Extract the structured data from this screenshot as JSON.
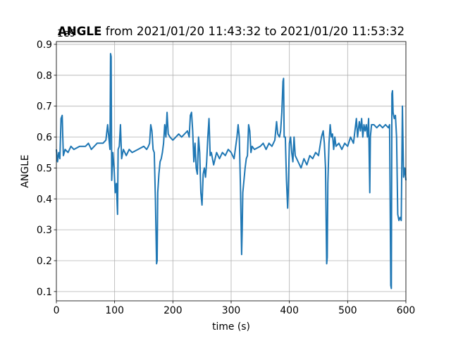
{
  "chart_data": {
    "type": "line",
    "title_bold": "ANGLE",
    "title": "from 2021/01/20 11:43:32 to 2021/01/20 11:53:32",
    "offset_text": "1e9",
    "xlabel": "time (s)",
    "ylabel": "ANGLE",
    "color": "#1f77b4",
    "grid": true,
    "xlim": [
      0,
      600
    ],
    "xticks": [
      0,
      100,
      200,
      300,
      400,
      500,
      600
    ],
    "ylim": [
      0.07,
      0.909
    ],
    "yticks": [
      0.1,
      0.2,
      0.3,
      0.4,
      0.5,
      0.6,
      0.7,
      0.8,
      0.9
    ],
    "x": [
      0,
      2,
      4,
      6,
      8,
      10,
      11,
      12,
      15,
      20,
      25,
      30,
      40,
      50,
      55,
      60,
      70,
      80,
      85,
      88,
      90,
      92,
      93,
      94,
      95,
      97,
      99,
      101,
      103,
      105,
      106,
      108,
      110,
      112,
      115,
      120,
      125,
      130,
      140,
      150,
      155,
      158,
      160,
      162,
      164,
      166,
      168,
      170,
      172,
      173,
      174,
      176,
      178,
      180,
      182,
      184,
      186,
      188,
      190,
      192,
      195,
      200,
      210,
      215,
      220,
      225,
      228,
      230,
      232,
      234,
      236,
      238,
      240,
      242,
      244,
      246,
      248,
      250,
      252,
      254,
      256,
      258,
      260,
      262,
      264,
      266,
      270,
      275,
      280,
      285,
      290,
      295,
      300,
      305,
      310,
      312,
      314,
      316,
      318,
      319,
      320,
      322,
      324,
      326,
      328,
      330,
      332,
      334,
      336,
      340,
      350,
      355,
      360,
      365,
      370,
      375,
      378,
      380,
      383,
      385,
      387,
      389,
      390,
      391,
      393,
      395,
      397,
      398,
      400,
      402,
      404,
      406,
      408,
      410,
      415,
      420,
      425,
      430,
      435,
      440,
      445,
      450,
      455,
      458,
      460,
      462,
      464,
      465,
      466,
      468,
      470,
      472,
      474,
      476,
      478,
      480,
      485,
      490,
      495,
      500,
      505,
      510,
      515,
      517,
      520,
      522,
      524,
      526,
      528,
      530,
      532,
      534,
      536,
      538,
      539,
      541,
      545,
      550,
      555,
      560,
      565,
      570,
      572,
      574,
      575,
      576,
      577,
      578,
      580,
      582,
      584,
      586,
      588,
      590,
      592,
      594,
      596,
      598,
      600
    ],
    "values": [
      0.56,
      0.52,
      0.55,
      0.53,
      0.66,
      0.67,
      0.6,
      0.54,
      0.56,
      0.55,
      0.57,
      0.56,
      0.57,
      0.57,
      0.58,
      0.56,
      0.58,
      0.58,
      0.59,
      0.64,
      0.6,
      0.56,
      0.87,
      0.86,
      0.46,
      0.55,
      0.5,
      0.42,
      0.45,
      0.35,
      0.56,
      0.57,
      0.64,
      0.53,
      0.56,
      0.54,
      0.56,
      0.55,
      0.56,
      0.57,
      0.56,
      0.57,
      0.58,
      0.64,
      0.62,
      0.56,
      0.55,
      0.4,
      0.19,
      0.2,
      0.42,
      0.48,
      0.52,
      0.53,
      0.55,
      0.58,
      0.64,
      0.6,
      0.68,
      0.61,
      0.6,
      0.59,
      0.61,
      0.6,
      0.61,
      0.62,
      0.6,
      0.67,
      0.68,
      0.62,
      0.52,
      0.58,
      0.5,
      0.48,
      0.6,
      0.55,
      0.42,
      0.38,
      0.48,
      0.5,
      0.47,
      0.52,
      0.6,
      0.66,
      0.54,
      0.55,
      0.51,
      0.55,
      0.53,
      0.55,
      0.54,
      0.56,
      0.55,
      0.53,
      0.6,
      0.64,
      0.6,
      0.44,
      0.22,
      0.3,
      0.42,
      0.46,
      0.5,
      0.53,
      0.54,
      0.64,
      0.62,
      0.55,
      0.57,
      0.56,
      0.57,
      0.58,
      0.56,
      0.58,
      0.57,
      0.59,
      0.65,
      0.61,
      0.6,
      0.62,
      0.68,
      0.78,
      0.79,
      0.6,
      0.6,
      0.46,
      0.37,
      0.42,
      0.58,
      0.6,
      0.55,
      0.52,
      0.6,
      0.54,
      0.52,
      0.5,
      0.53,
      0.51,
      0.54,
      0.53,
      0.55,
      0.54,
      0.6,
      0.62,
      0.58,
      0.5,
      0.19,
      0.21,
      0.45,
      0.58,
      0.64,
      0.6,
      0.61,
      0.56,
      0.6,
      0.57,
      0.58,
      0.56,
      0.58,
      0.57,
      0.6,
      0.58,
      0.66,
      0.6,
      0.65,
      0.62,
      0.66,
      0.6,
      0.64,
      0.62,
      0.64,
      0.6,
      0.66,
      0.42,
      0.6,
      0.64,
      0.64,
      0.63,
      0.64,
      0.63,
      0.64,
      0.63,
      0.64,
      0.12,
      0.11,
      0.74,
      0.75,
      0.68,
      0.66,
      0.67,
      0.6,
      0.35,
      0.33,
      0.34,
      0.33,
      0.7,
      0.47,
      0.5,
      0.46
    ]
  }
}
